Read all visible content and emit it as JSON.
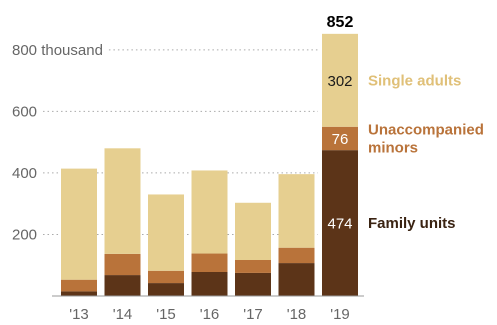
{
  "chart_data": {
    "type": "bar",
    "stacked": true,
    "categories": [
      "'13",
      "'14",
      "'15",
      "'16",
      "'17",
      "'18",
      "'19"
    ],
    "series": [
      {
        "name": "Family units",
        "color": "#5c3418",
        "values": [
          15,
          68,
          42,
          78,
          75,
          107,
          474
        ]
      },
      {
        "name": "Unaccompanied minors",
        "color": "#b9733a",
        "values": [
          38,
          69,
          40,
          60,
          42,
          50,
          76
        ]
      },
      {
        "name": "Single adults",
        "color": "#e6cf90",
        "values": [
          361,
          343,
          248,
          270,
          186,
          239,
          302
        ]
      }
    ],
    "total_labels": [
      {
        "index": 6,
        "text": "852"
      }
    ],
    "segment_labels": [
      {
        "index": 6,
        "series": 0,
        "text": "474"
      },
      {
        "index": 6,
        "series": 1,
        "text": "76"
      },
      {
        "index": 6,
        "series": 2,
        "text": "302"
      }
    ],
    "legend_lines": [
      [
        "Single adults"
      ],
      [
        "Unaccompanied",
        "minors"
      ],
      [
        "Family units"
      ]
    ],
    "legend_placement": "right",
    "y_ticks": [
      {
        "value": 200,
        "label": "200"
      },
      {
        "value": 400,
        "label": "400"
      },
      {
        "value": 600,
        "label": "600"
      },
      {
        "value": 800,
        "label": "800 thousand"
      }
    ],
    "ylim": [
      0,
      852
    ],
    "grid": true,
    "title": "",
    "xlabel": "",
    "ylabel": ""
  }
}
